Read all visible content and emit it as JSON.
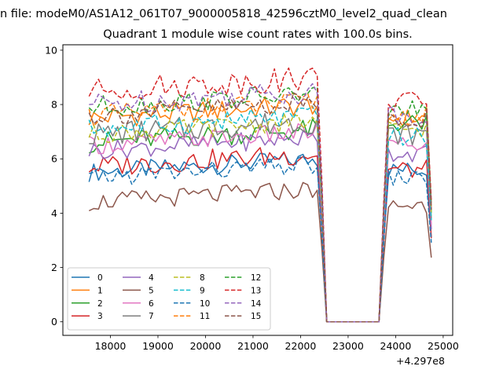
{
  "suptitle": "n file: modeM0/AS1A12_061T07_9000005818_42596cztM0_level2_quad_clean",
  "chart_data": {
    "type": "line",
    "title": "Quadrant 1 module wise count rates with 100.0s bins.",
    "xlabel": "",
    "ylabel": "",
    "x_offset_label": "+4.297e8",
    "xlim": [
      17000,
      25200
    ],
    "ylim": [
      -0.5,
      10.2
    ],
    "xticks": [
      18000,
      19000,
      20000,
      21000,
      22000,
      23000,
      24000,
      25000
    ],
    "yticks": [
      0,
      2,
      4,
      6,
      8,
      10
    ],
    "grid": false,
    "legend_position": "lower-left",
    "legend_columns": 4,
    "segments": [
      {
        "x_start": 17550,
        "x_end": 22450,
        "step": 100
      },
      {
        "x_start": 22550,
        "x_end": 23650,
        "step": 100,
        "constant": 0
      },
      {
        "x_start": 23750,
        "x_end": 24750,
        "step": 100
      }
    ],
    "series": [
      {
        "name": "0",
        "color": "#1f77b4",
        "dash": "solid",
        "level": 5.5,
        "amp": 0.35,
        "level2": 5.6
      },
      {
        "name": "1",
        "color": "#ff7f0e",
        "dash": "solid",
        "level": 7.5,
        "amp": 0.4,
        "level2": 7.5
      },
      {
        "name": "2",
        "color": "#2ca02c",
        "dash": "solid",
        "level": 6.6,
        "amp": 0.4,
        "level2": 7.3
      },
      {
        "name": "3",
        "color": "#d62728",
        "dash": "solid",
        "level": 5.7,
        "amp": 0.4,
        "level2": 5.6
      },
      {
        "name": "4",
        "color": "#9467bd",
        "dash": "solid",
        "level": 6.3,
        "amp": 0.35,
        "level2": 6.2
      },
      {
        "name": "5",
        "color": "#8c564b",
        "dash": "solid",
        "level": 4.4,
        "amp": 0.35,
        "level2": 4.3
      },
      {
        "name": "6",
        "color": "#e377c2",
        "dash": "solid",
        "level": 6.5,
        "amp": 0.35,
        "level2": 6.5
      },
      {
        "name": "7",
        "color": "#7f7f7f",
        "dash": "solid",
        "level": 6.9,
        "amp": 0.45,
        "level2": 6.9
      },
      {
        "name": "8",
        "color": "#bcbd22",
        "dash": "dashed",
        "level": 6.9,
        "amp": 0.35,
        "level2": 7.1
      },
      {
        "name": "9",
        "color": "#17becf",
        "dash": "dashed",
        "level": 7.1,
        "amp": 0.4,
        "level2": 6.8
      },
      {
        "name": "10",
        "color": "#1f77b4",
        "dash": "dashed",
        "level": 5.3,
        "amp": 0.35,
        "level2": 5.3
      },
      {
        "name": "11",
        "color": "#ff7f0e",
        "dash": "dashed",
        "level": 7.6,
        "amp": 0.4,
        "level2": 7.6
      },
      {
        "name": "12",
        "color": "#2ca02c",
        "dash": "dashed",
        "level": 7.9,
        "amp": 0.4,
        "level2": 7.8
      },
      {
        "name": "13",
        "color": "#d62728",
        "dash": "dashed",
        "level": 8.5,
        "amp": 0.45,
        "level2": 8.1
      },
      {
        "name": "14",
        "color": "#9467bd",
        "dash": "dashed",
        "level": 8.0,
        "amp": 0.45,
        "level2": 7.6
      },
      {
        "name": "15",
        "color": "#8c564b",
        "dash": "dashed",
        "level": 7.6,
        "amp": 0.4,
        "level2": 7.5
      }
    ]
  }
}
